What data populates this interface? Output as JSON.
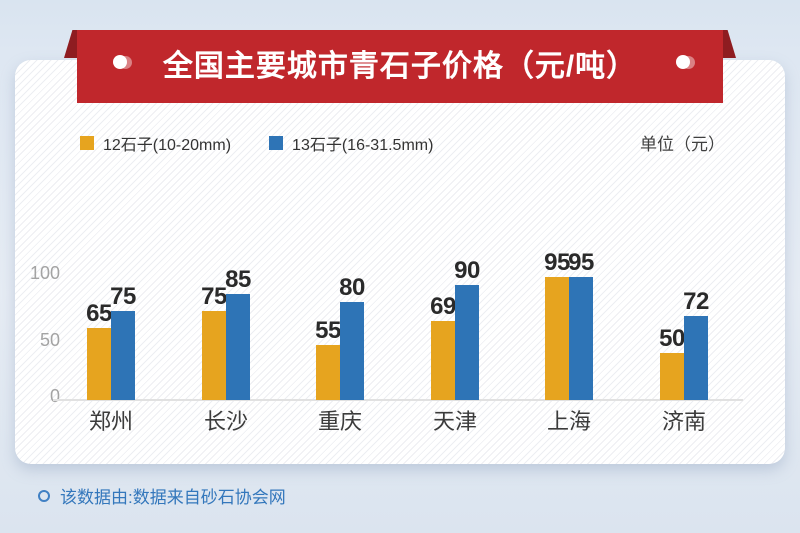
{
  "ribbon": {
    "title": "全国主要城市青石子价格（元/吨）",
    "banner_color": "#C0272C",
    "fold_color": "#8E1C21"
  },
  "legend": {
    "items": [
      {
        "label": "12石子(10-20mm)",
        "color": "#E6A41F"
      },
      {
        "label": "13石子(16-31.5mm)",
        "color": "#2E74B6"
      }
    ],
    "unit_label": "单位（元）"
  },
  "chart_data": {
    "type": "bar",
    "categories": [
      "郑州",
      "长沙",
      "重庆",
      "天津",
      "上海",
      "济南"
    ],
    "series": [
      {
        "name": "12石子(10-20mm)",
        "color": "#E6A41F",
        "values": [
          65,
          75,
          55,
          69,
          95,
          50
        ]
      },
      {
        "name": "13石子(16-31.5mm)",
        "color": "#2E74B6",
        "values": [
          75,
          85,
          80,
          90,
          95,
          72
        ]
      }
    ],
    "title": "全国主要城市青石子价格（元/吨）",
    "ylabel": "元",
    "ylim": [
      0,
      100
    ],
    "yticks": [
      0,
      50,
      100
    ],
    "grid": false,
    "data_labels": true,
    "legend_position": "top-left"
  },
  "footer": {
    "note": "该数据由:数据来自砂石协会网"
  }
}
